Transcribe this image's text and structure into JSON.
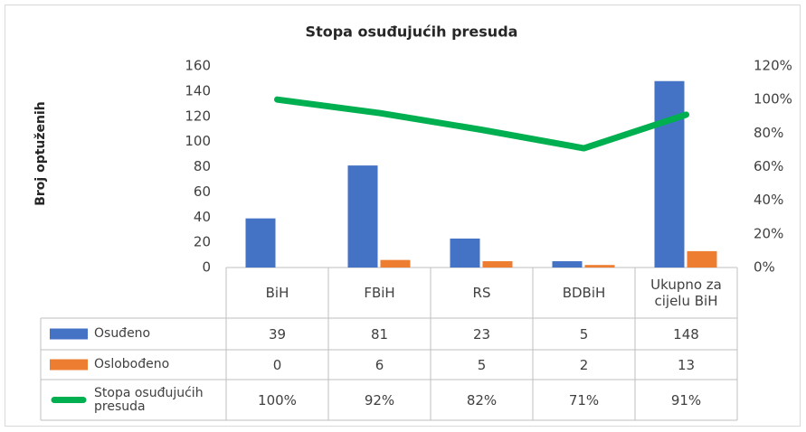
{
  "chart_data": {
    "type": "bar",
    "title": "Stopa osuđujućih presuda",
    "y_label": "Broj optuženih",
    "categories": [
      "BiH",
      "FBiH",
      "RS",
      "BDBiH",
      "Ukupno za cijelu BiH"
    ],
    "series": [
      {
        "name": "Osuđeno",
        "color": "#4472c4",
        "type": "bar",
        "values": [
          39,
          81,
          23,
          5,
          148
        ]
      },
      {
        "name": "Oslobođeno",
        "color": "#ed7d31",
        "type": "bar",
        "values": [
          0,
          6,
          5,
          2,
          13
        ]
      },
      {
        "name": "Stopa osuđujućih presuda",
        "color": "#00b050",
        "type": "line",
        "axis": "y2",
        "values": [
          100,
          92,
          82,
          71,
          91
        ],
        "value_labels": [
          "100%",
          "92%",
          "82%",
          "71%",
          "91%"
        ]
      }
    ],
    "ylim": [
      0,
      160
    ],
    "yticks": [
      0,
      20,
      40,
      60,
      80,
      100,
      120,
      140,
      160
    ],
    "y2lim": [
      0,
      120
    ],
    "y2ticks": [
      {
        "value": 0,
        "label": "0%"
      },
      {
        "value": 20,
        "label": "20%"
      },
      {
        "value": 40,
        "label": "40%"
      },
      {
        "value": 60,
        "label": "60%"
      },
      {
        "value": 80,
        "label": "80%"
      },
      {
        "value": 100,
        "label": "100%"
      },
      {
        "value": 120,
        "label": "120%"
      }
    ],
    "data_table": true
  }
}
